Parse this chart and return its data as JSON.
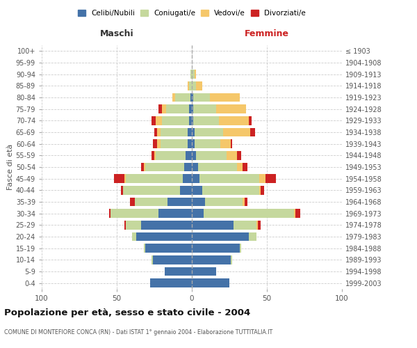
{
  "age_groups": [
    "0-4",
    "5-9",
    "10-14",
    "15-19",
    "20-24",
    "25-29",
    "30-34",
    "35-39",
    "40-44",
    "45-49",
    "50-54",
    "55-59",
    "60-64",
    "65-69",
    "70-74",
    "75-79",
    "80-84",
    "85-89",
    "90-94",
    "95-99",
    "100+"
  ],
  "birth_years": [
    "1999-2003",
    "1994-1998",
    "1989-1993",
    "1984-1988",
    "1979-1983",
    "1974-1978",
    "1969-1973",
    "1964-1968",
    "1959-1963",
    "1954-1958",
    "1949-1953",
    "1944-1948",
    "1939-1943",
    "1934-1938",
    "1929-1933",
    "1924-1928",
    "1919-1923",
    "1914-1918",
    "1909-1913",
    "1904-1908",
    "≤ 1903"
  ],
  "males": {
    "celibi": [
      28,
      18,
      26,
      31,
      37,
      34,
      22,
      16,
      8,
      6,
      5,
      4,
      3,
      3,
      2,
      2,
      1,
      0,
      0,
      0,
      0
    ],
    "coniugati": [
      0,
      0,
      1,
      1,
      3,
      10,
      32,
      22,
      38,
      38,
      26,
      20,
      18,
      18,
      18,
      15,
      10,
      2,
      1,
      0,
      0
    ],
    "vedovi": [
      0,
      0,
      0,
      0,
      0,
      0,
      0,
      0,
      0,
      1,
      1,
      1,
      2,
      2,
      4,
      3,
      2,
      1,
      0,
      0,
      0
    ],
    "divorziati": [
      0,
      0,
      0,
      0,
      0,
      1,
      1,
      3,
      1,
      7,
      2,
      2,
      3,
      2,
      3,
      2,
      0,
      0,
      0,
      0,
      0
    ]
  },
  "females": {
    "nubili": [
      25,
      16,
      26,
      32,
      38,
      28,
      8,
      9,
      7,
      5,
      4,
      3,
      2,
      2,
      1,
      1,
      1,
      0,
      0,
      0,
      0
    ],
    "coniugate": [
      0,
      0,
      1,
      1,
      5,
      15,
      60,
      25,
      38,
      40,
      26,
      20,
      17,
      19,
      17,
      15,
      11,
      3,
      2,
      0,
      0
    ],
    "vedove": [
      0,
      0,
      0,
      0,
      0,
      1,
      1,
      1,
      1,
      4,
      4,
      7,
      7,
      18,
      20,
      20,
      20,
      4,
      1,
      0,
      0
    ],
    "divorziate": [
      0,
      0,
      0,
      0,
      0,
      2,
      3,
      2,
      2,
      7,
      3,
      3,
      1,
      3,
      2,
      0,
      0,
      0,
      0,
      0,
      0
    ]
  },
  "colors": {
    "celibi": "#4472a8",
    "coniugati": "#c5d89d",
    "vedovi": "#f5c76a",
    "divorziati": "#cc2222"
  },
  "xlim": 100,
  "title": "Popolazione per età, sesso e stato civile - 2004",
  "subtitle": "COMUNE DI MONTEFIORE CONCA (RN) - Dati ISTAT 1° gennaio 2004 - Elaborazione TUTTITALIA.IT",
  "ylabel_left": "Fasce di età",
  "xlabel_maschi": "Maschi",
  "xlabel_femmine": "Femmine",
  "legend_labels": [
    "Celibi/Nubili",
    "Coniugati/e",
    "Vedovi/e",
    "Divorziati/e"
  ],
  "bg_color": "#ffffff",
  "bar_height": 0.75
}
